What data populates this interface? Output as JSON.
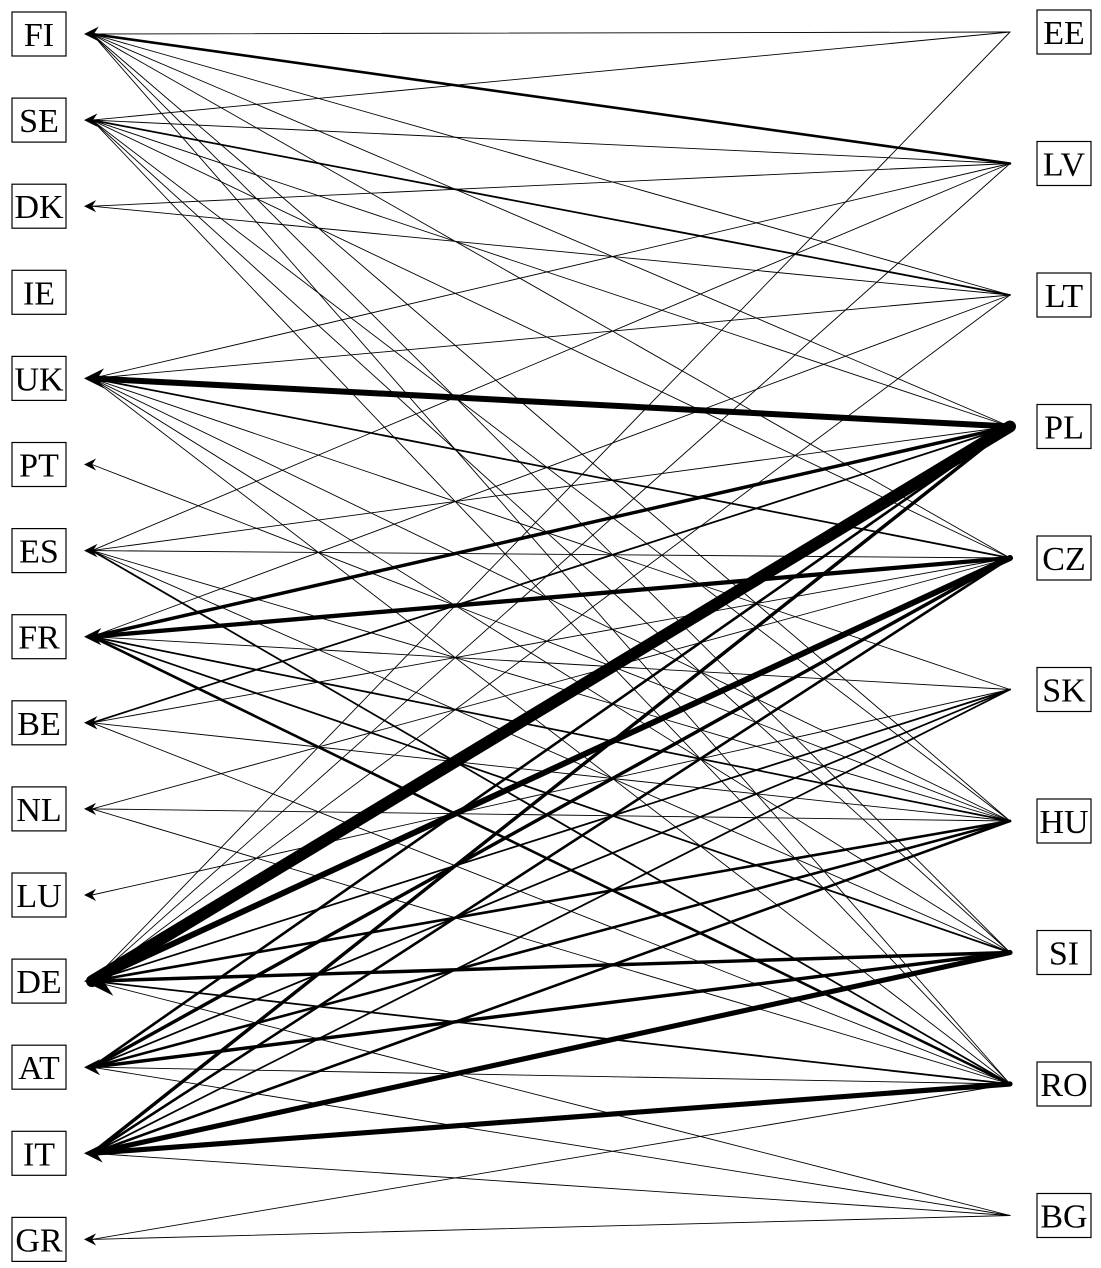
{
  "diagram": {
    "left_countries": [
      "FI",
      "SE",
      "DK",
      "IE",
      "UK",
      "PT",
      "ES",
      "FR",
      "BE",
      "NL",
      "LU",
      "DE",
      "AT",
      "IT",
      "GR"
    ],
    "right_countries": [
      "EE",
      "LV",
      "LT",
      "PL",
      "CZ",
      "SK",
      "HU",
      "SI",
      "RO",
      "BG"
    ],
    "flows": [
      {
        "from": "EE",
        "to": "FI",
        "weight": 1
      },
      {
        "from": "LV",
        "to": "FI",
        "weight": 3
      },
      {
        "from": "LT",
        "to": "FI",
        "weight": 1
      },
      {
        "from": "PL",
        "to": "FI",
        "weight": 1
      },
      {
        "from": "CZ",
        "to": "FI",
        "weight": 1
      },
      {
        "from": "HU",
        "to": "FI",
        "weight": 1
      },
      {
        "from": "SI",
        "to": "FI",
        "weight": 1
      },
      {
        "from": "RO",
        "to": "FI",
        "weight": 1
      },
      {
        "from": "EE",
        "to": "SE",
        "weight": 1
      },
      {
        "from": "LV",
        "to": "SE",
        "weight": 1
      },
      {
        "from": "LT",
        "to": "SE",
        "weight": 2
      },
      {
        "from": "PL",
        "to": "SE",
        "weight": 1
      },
      {
        "from": "CZ",
        "to": "SE",
        "weight": 1
      },
      {
        "from": "HU",
        "to": "SE",
        "weight": 1
      },
      {
        "from": "SI",
        "to": "SE",
        "weight": 1
      },
      {
        "from": "RO",
        "to": "SE",
        "weight": 1
      },
      {
        "from": "LV",
        "to": "DK",
        "weight": 1
      },
      {
        "from": "LT",
        "to": "DK",
        "weight": 1
      },
      {
        "from": "PL",
        "to": "UK",
        "weight": 7
      },
      {
        "from": "LV",
        "to": "UK",
        "weight": 1
      },
      {
        "from": "LT",
        "to": "UK",
        "weight": 1
      },
      {
        "from": "CZ",
        "to": "UK",
        "weight": 2
      },
      {
        "from": "SK",
        "to": "UK",
        "weight": 1
      },
      {
        "from": "HU",
        "to": "UK",
        "weight": 1
      },
      {
        "from": "SI",
        "to": "UK",
        "weight": 1
      },
      {
        "from": "RO",
        "to": "UK",
        "weight": 1
      },
      {
        "from": "HU",
        "to": "PT",
        "weight": 1
      },
      {
        "from": "LV",
        "to": "ES",
        "weight": 1
      },
      {
        "from": "PL",
        "to": "ES",
        "weight": 1
      },
      {
        "from": "CZ",
        "to": "ES",
        "weight": 1
      },
      {
        "from": "HU",
        "to": "ES",
        "weight": 1
      },
      {
        "from": "SI",
        "to": "ES",
        "weight": 1
      },
      {
        "from": "RO",
        "to": "ES",
        "weight": 2
      },
      {
        "from": "LT",
        "to": "FR",
        "weight": 1
      },
      {
        "from": "PL",
        "to": "FR",
        "weight": 4
      },
      {
        "from": "CZ",
        "to": "FR",
        "weight": 5
      },
      {
        "from": "SK",
        "to": "FR",
        "weight": 1
      },
      {
        "from": "HU",
        "to": "FR",
        "weight": 2
      },
      {
        "from": "SI",
        "to": "FR",
        "weight": 2
      },
      {
        "from": "RO",
        "to": "FR",
        "weight": 3
      },
      {
        "from": "PL",
        "to": "BE",
        "weight": 2
      },
      {
        "from": "CZ",
        "to": "BE",
        "weight": 1
      },
      {
        "from": "HU",
        "to": "BE",
        "weight": 1
      },
      {
        "from": "RO",
        "to": "BE",
        "weight": 1
      },
      {
        "from": "CZ",
        "to": "NL",
        "weight": 1
      },
      {
        "from": "HU",
        "to": "NL",
        "weight": 1
      },
      {
        "from": "RO",
        "to": "NL",
        "weight": 1
      },
      {
        "from": "SK",
        "to": "LU",
        "weight": 1
      },
      {
        "from": "EE",
        "to": "DE",
        "weight": 1
      },
      {
        "from": "LV",
        "to": "DE",
        "weight": 1
      },
      {
        "from": "LT",
        "to": "DE",
        "weight": 1
      },
      {
        "from": "PL",
        "to": "DE",
        "weight": 14
      },
      {
        "from": "CZ",
        "to": "DE",
        "weight": 7
      },
      {
        "from": "SK",
        "to": "DE",
        "weight": 2
      },
      {
        "from": "HU",
        "to": "DE",
        "weight": 3
      },
      {
        "from": "SI",
        "to": "DE",
        "weight": 4
      },
      {
        "from": "RO",
        "to": "DE",
        "weight": 2
      },
      {
        "from": "BG",
        "to": "DE",
        "weight": 1
      },
      {
        "from": "PL",
        "to": "AT",
        "weight": 3
      },
      {
        "from": "CZ",
        "to": "AT",
        "weight": 4
      },
      {
        "from": "SK",
        "to": "AT",
        "weight": 2
      },
      {
        "from": "HU",
        "to": "AT",
        "weight": 3
      },
      {
        "from": "SI",
        "to": "AT",
        "weight": 4
      },
      {
        "from": "RO",
        "to": "AT",
        "weight": 1
      },
      {
        "from": "BG",
        "to": "AT",
        "weight": 1
      },
      {
        "from": "PL",
        "to": "IT",
        "weight": 4
      },
      {
        "from": "CZ",
        "to": "IT",
        "weight": 3
      },
      {
        "from": "SK",
        "to": "IT",
        "weight": 2
      },
      {
        "from": "HU",
        "to": "IT",
        "weight": 3
      },
      {
        "from": "SI",
        "to": "IT",
        "weight": 6
      },
      {
        "from": "RO",
        "to": "IT",
        "weight": 6
      },
      {
        "from": "BG",
        "to": "IT",
        "weight": 1
      },
      {
        "from": "RO",
        "to": "GR",
        "weight": 1
      },
      {
        "from": "BG",
        "to": "GR",
        "weight": 1
      }
    ]
  }
}
